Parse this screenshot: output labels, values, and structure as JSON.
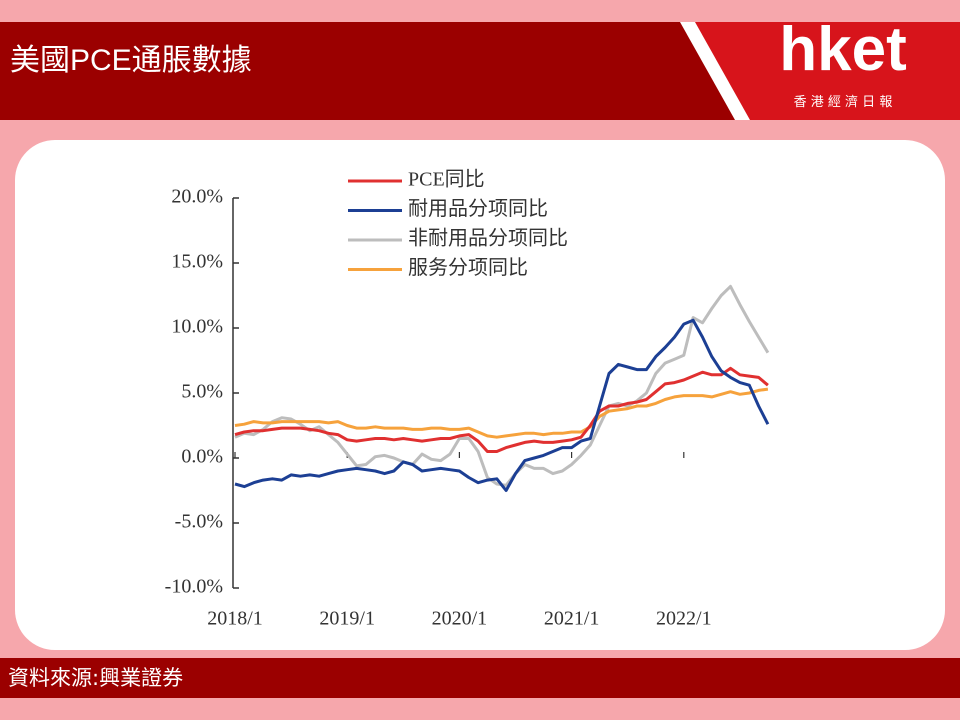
{
  "header": {
    "title": "美國PCE通脹數據",
    "logo": "hket",
    "logo_sub": "香 港 經 濟 日 報"
  },
  "footer": {
    "source": "資料來源:興業證券"
  },
  "chart_data": {
    "type": "line",
    "categories": [
      "2018/1",
      null,
      null,
      null,
      null,
      null,
      null,
      null,
      null,
      null,
      null,
      null,
      "2019/1",
      null,
      null,
      null,
      null,
      null,
      null,
      null,
      null,
      null,
      null,
      null,
      "2020/1",
      null,
      null,
      null,
      null,
      null,
      null,
      null,
      null,
      null,
      null,
      null,
      "2021/1",
      null,
      null,
      null,
      null,
      null,
      null,
      null,
      null,
      null,
      null,
      null,
      "2022/1",
      null,
      null,
      null,
      null,
      null,
      null,
      null,
      null,
      null
    ],
    "ylim": [
      -10,
      20
    ],
    "yticks": [
      {
        "value": -10,
        "label": "-10.0%"
      },
      {
        "value": -5,
        "label": "-5.0%"
      },
      {
        "value": 0,
        "label": "0.0%"
      },
      {
        "value": 5,
        "label": "5.0%"
      },
      {
        "value": 10,
        "label": "10.0%"
      },
      {
        "value": 15,
        "label": "15.0%"
      },
      {
        "value": 20,
        "label": "20.0%"
      }
    ],
    "legend": "top",
    "series": [
      {
        "name": "PCE同比",
        "color": "#e03030",
        "values": [
          1.8,
          2.0,
          2.1,
          2.1,
          2.2,
          2.3,
          2.3,
          2.3,
          2.2,
          2.1,
          1.9,
          1.8,
          1.4,
          1.3,
          1.4,
          1.5,
          1.5,
          1.4,
          1.5,
          1.4,
          1.3,
          1.4,
          1.5,
          1.5,
          1.7,
          1.8,
          1.3,
          0.5,
          0.5,
          0.8,
          1.0,
          1.2,
          1.3,
          1.2,
          1.2,
          1.3,
          1.4,
          1.6,
          2.5,
          3.6,
          4.0,
          4.0,
          4.2,
          4.3,
          4.5,
          5.1,
          5.7,
          5.8,
          6.0,
          6.3,
          6.6,
          6.4,
          6.4,
          6.9,
          6.4,
          6.3,
          6.2,
          5.6
        ]
      },
      {
        "name": "耐用品分项同比",
        "color": "#1c3f94",
        "values": [
          -2.0,
          -2.2,
          -1.9,
          -1.7,
          -1.6,
          -1.7,
          -1.3,
          -1.4,
          -1.3,
          -1.4,
          -1.2,
          -1.0,
          -0.9,
          -0.8,
          -0.9,
          -1.0,
          -1.2,
          -1.0,
          -0.3,
          -0.5,
          -1.0,
          -0.9,
          -0.8,
          -0.9,
          -1.0,
          -1.5,
          -1.9,
          -1.7,
          -1.6,
          -2.5,
          -1.2,
          -0.2,
          0.0,
          0.2,
          0.5,
          0.8,
          0.8,
          1.3,
          1.5,
          4.0,
          6.5,
          7.2,
          7.0,
          6.8,
          6.8,
          7.8,
          8.5,
          9.3,
          10.3,
          10.6,
          9.3,
          7.8,
          6.7,
          6.2,
          5.8,
          5.6,
          4.0,
          2.6
        ]
      },
      {
        "name": "非耐用品分项同比",
        "color": "#bdbdbd",
        "values": [
          1.6,
          1.9,
          1.8,
          2.2,
          2.8,
          3.1,
          3.0,
          2.6,
          2.1,
          2.4,
          1.8,
          1.2,
          0.3,
          -0.6,
          -0.5,
          0.1,
          0.2,
          0.0,
          -0.3,
          -0.5,
          0.3,
          -0.1,
          -0.2,
          0.3,
          1.5,
          1.5,
          0.5,
          -1.5,
          -2.0,
          -2.1,
          -1.2,
          -0.5,
          -0.8,
          -0.8,
          -1.2,
          -1.0,
          -0.5,
          0.2,
          1.0,
          2.5,
          4.0,
          4.2,
          4.0,
          4.4,
          5.0,
          6.5,
          7.3,
          7.6,
          7.9,
          10.8,
          10.4,
          11.5,
          12.5,
          13.2,
          11.8,
          10.5,
          9.3,
          8.1
        ]
      },
      {
        "name": "服务分项同比",
        "color": "#f6a23c",
        "values": [
          2.5,
          2.6,
          2.8,
          2.7,
          2.7,
          2.8,
          2.8,
          2.8,
          2.8,
          2.8,
          2.7,
          2.8,
          2.5,
          2.3,
          2.3,
          2.4,
          2.3,
          2.3,
          2.3,
          2.2,
          2.2,
          2.3,
          2.3,
          2.2,
          2.2,
          2.3,
          2.0,
          1.7,
          1.6,
          1.7,
          1.8,
          1.9,
          1.9,
          1.8,
          1.9,
          1.9,
          2.0,
          2.0,
          2.4,
          3.2,
          3.6,
          3.7,
          3.8,
          4.0,
          4.0,
          4.2,
          4.5,
          4.7,
          4.8,
          4.8,
          4.8,
          4.7,
          4.9,
          5.1,
          4.9,
          5.0,
          5.2,
          5.3
        ]
      }
    ]
  }
}
